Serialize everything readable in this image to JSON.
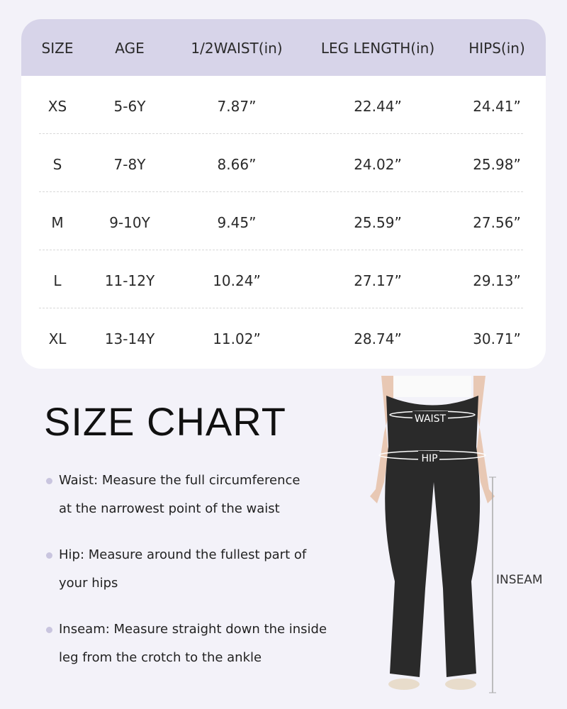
{
  "table": {
    "headers": [
      "SIZE",
      "AGE",
      "1/2WAIST(in)",
      "LEG LENGTH(in)",
      "HIPS(in)"
    ],
    "rows": [
      [
        "XS",
        "5-6Y",
        "7.87”",
        "22.44”",
        "24.41”"
      ],
      [
        "S",
        "7-8Y",
        "8.66”",
        "24.02”",
        "25.98”"
      ],
      [
        "M",
        "9-10Y",
        "9.45”",
        "25.59”",
        "27.56”"
      ],
      [
        "L",
        "11-12Y",
        "10.24”",
        "27.17”",
        "29.13”"
      ],
      [
        "XL",
        "13-14Y",
        "11.02”",
        "28.74”",
        "30.71”"
      ]
    ]
  },
  "title": "SIZE CHART",
  "instructions": [
    {
      "line1": "Waist: Measure the full circumference",
      "line2": "at the narrowest point of the waist"
    },
    {
      "line1": "Hip: Measure around the fullest part of",
      "line2": "your hips"
    },
    {
      "line1": "Inseam: Measure straight down the inside",
      "line2": "leg from the crotch to the ankle"
    }
  ],
  "figure": {
    "waist_label": "WAIST",
    "hip_label": "HIP",
    "inseam_label": "INSEAM"
  },
  "colors": {
    "background": "#f3f2f9",
    "header": "#d7d4e9",
    "pants": "#2a2a2a"
  }
}
